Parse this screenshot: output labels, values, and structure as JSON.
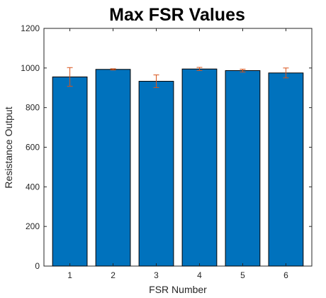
{
  "chart_data": {
    "type": "bar",
    "title": "Max FSR Values",
    "xlabel": "FSR Number",
    "ylabel": "Resistance Output",
    "categories": [
      "1",
      "2",
      "3",
      "4",
      "5",
      "6"
    ],
    "values": [
      955,
      993,
      933,
      995,
      987,
      975
    ],
    "error": [
      47,
      3,
      32,
      8,
      7,
      25
    ],
    "ylim": [
      0,
      1200
    ],
    "yticks": [
      0,
      200,
      400,
      600,
      800,
      1000,
      1200
    ],
    "bar_color": "#0072BD",
    "error_color": "#D95319",
    "grid": false,
    "legend": "none"
  }
}
